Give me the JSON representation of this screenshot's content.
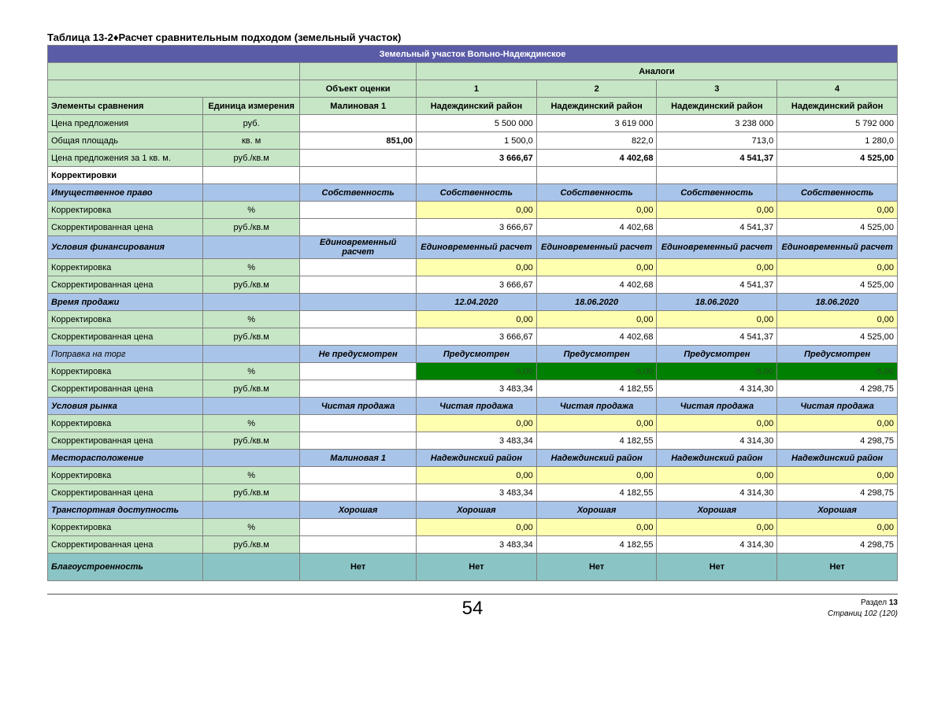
{
  "title_prefix": "Таблица 13-2",
  "title_diamond": "♦",
  "title_text": "Расчет сравнительным подходом (земельный участок)",
  "main_header": "Земельный участок Вольно-Надеждинское",
  "analogs_label": "Аналоги",
  "object_label": "Объект оценки",
  "col_nums": [
    "1",
    "2",
    "3",
    "4"
  ],
  "elem_label": "Элементы сравнения",
  "unit_label": "Единица измерения",
  "obj_name": "Малиновая 1",
  "analog_name": "Надеждинский район",
  "rows": {
    "price_offer": {
      "label": "Цена предложения",
      "unit": "руб.",
      "obj": "",
      "a": [
        "5 500 000",
        "3 619 000",
        "3 238 000",
        "5 792 000"
      ]
    },
    "area": {
      "label": "Общая площадь",
      "unit": "кв. м",
      "obj": "851,00",
      "a": [
        "1 500,0",
        "822,0",
        "713,0",
        "1 280,0"
      ]
    },
    "price_m2": {
      "label": "Цена предложения за 1 кв. м.",
      "unit": "руб./кв.м",
      "obj": "",
      "a": [
        "3 666,67",
        "4 402,68",
        "4 541,37",
        "4 525,00"
      ]
    }
  },
  "adjust_label": "Корректировки",
  "sections": [
    {
      "name": "Имущественное право",
      "obj": "Собственность",
      "a": [
        "Собственность",
        "Собственность",
        "Собственность",
        "Собственность"
      ],
      "corr": [
        "0,00",
        "0,00",
        "0,00",
        "0,00"
      ],
      "adj": [
        "3 666,67",
        "4 402,68",
        "4 541,37",
        "4 525,00"
      ],
      "neg": false
    },
    {
      "name": "Условия финансирования",
      "obj": "Единовременный расчет",
      "a": [
        "Единовременный расчет",
        "Единовременный расчет",
        "Единовременный расчет",
        "Единовременный расчет"
      ],
      "corr": [
        "0,00",
        "0,00",
        "0,00",
        "0,00"
      ],
      "adj": [
        "3 666,67",
        "4 402,68",
        "4 541,37",
        "4 525,00"
      ],
      "neg": false
    },
    {
      "name": "Время продажи",
      "obj": "",
      "a": [
        "12.04.2020",
        "18.06.2020",
        "18.06.2020",
        "18.06.2020"
      ],
      "corr": [
        "0,00",
        "0,00",
        "0,00",
        "0,00"
      ],
      "adj": [
        "3 666,67",
        "4 402,68",
        "4 541,37",
        "4 525,00"
      ],
      "neg": false
    }
  ],
  "torg": {
    "name": "Поправка на торг",
    "obj": "Не предусмотрен",
    "a": [
      "Предусмотрен",
      "Предусмотрен",
      "Предусмотрен",
      "Предусмотрен"
    ],
    "corr": [
      "-5,00",
      "-5,00",
      "-5,00",
      "-5,00"
    ],
    "adj": [
      "3 483,34",
      "4 182,55",
      "4 314,30",
      "4 298,75"
    ],
    "neg": true
  },
  "sections2": [
    {
      "name": "Условия рынка",
      "obj": "Чистая продажа",
      "a": [
        "Чистая продажа",
        "Чистая продажа",
        "Чистая продажа",
        "Чистая продажа"
      ],
      "corr": [
        "0,00",
        "0,00",
        "0,00",
        "0,00"
      ],
      "adj": [
        "3 483,34",
        "4 182,55",
        "4 314,30",
        "4 298,75"
      ]
    },
    {
      "name": "Месторасположение",
      "obj": "Малиновая 1",
      "a": [
        "Надеждинский район",
        "Надеждинский район",
        "Надеждинский район",
        "Надеждинский район"
      ],
      "corr": [
        "0,00",
        "0,00",
        "0,00",
        "0,00"
      ],
      "adj": [
        "3 483,34",
        "4 182,55",
        "4 314,30",
        "4 298,75"
      ]
    },
    {
      "name": "Транспортная доступность",
      "obj": "Хорошая",
      "a": [
        "Хорошая",
        "Хорошая",
        "Хорошая",
        "Хорошая"
      ],
      "corr": [
        "0,00",
        "0,00",
        "0,00",
        "0,00"
      ],
      "adj": [
        "3 483,34",
        "4 182,55",
        "4 314,30",
        "4 298,75"
      ]
    }
  ],
  "blag": {
    "name": "Благоустроенность",
    "obj": "Нет",
    "a": [
      "Нет",
      "Нет",
      "Нет",
      "Нет"
    ]
  },
  "corr_label": "Корректировка",
  "corr_unit": "%",
  "adj_label": "Скорректированная цена",
  "adj_unit": "руб./кв.м",
  "footer": {
    "page": "54",
    "section_label": "Раздел",
    "section_num": "13",
    "pages_label": "Страниц",
    "pages_val": "102",
    "pages_total": "(120)"
  }
}
